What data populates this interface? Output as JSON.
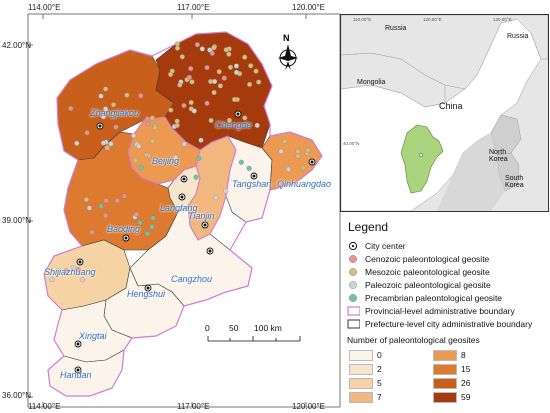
{
  "coords": {
    "top": [
      "114.00°E",
      "117.00°E",
      "120.00°E"
    ],
    "bottom": [
      "114.00°E",
      "117.00°E",
      "120.00°E"
    ],
    "left": [
      "42.00°N",
      "39.00°N",
      "36.00°N"
    ]
  },
  "north_arrow": "N",
  "cities": [
    "Zhangjiakou",
    "Chengde",
    "Beijing",
    "Langfang",
    "Tianjin",
    "Tangshan",
    "Qinhuangdao",
    "Baoding",
    "Shijiazhuang",
    "Cangzhou",
    "Hengshui",
    "Xingtai",
    "Handan"
  ],
  "inset": {
    "labels": {
      "russia_w": "Russia",
      "russia_e": "Russia",
      "mongolia": "Mongolia",
      "china": "China",
      "north_korea": "North\nKorea",
      "south_korea": "South\nKorea"
    },
    "coords": [
      "110.00°E",
      "120.00°E",
      "130.00°E",
      "40.00°N"
    ]
  },
  "legend": {
    "title": "Legend",
    "items": [
      "City center",
      "Cenozoic paleontological geosite",
      "Mesozoic paleontological geosite",
      "Paleozoic paleontological geosite",
      "Precambrian paleontological geosite",
      "Provincial-level administrative boundary",
      "Prefecture-level city administrative boundary"
    ],
    "count_title": "Number of paleontological geosites",
    "counts_left": [
      "0",
      "2",
      "5",
      "7"
    ],
    "counts_right": [
      "8",
      "15",
      "26",
      "59"
    ],
    "colors_left": [
      "#fcf4ea",
      "#f8e6cc",
      "#f6d3a4",
      "#f2b77e"
    ],
    "colors_right": [
      "#ec9a52",
      "#dd7a30",
      "#c8601c",
      "#a53b0c"
    ],
    "site_colors": {
      "cenozoic": "#e79296",
      "mesozoic": "#d6bc7e",
      "paleozoic": "#d2d2d6",
      "precambrian": "#72c2a8"
    }
  },
  "scale_bar": {
    "labels": [
      "0",
      "50",
      "100 km"
    ]
  },
  "region_counts": {
    "Zhangjiakou": "26",
    "Chengde": "59",
    "Beijing": "8",
    "Langfang": "2",
    "Tianjin": "7",
    "Tangshan": "0",
    "Qinhuangdao": "8",
    "Baoding": "15",
    "Shijiazhuang": "5",
    "Cangzhou": "0",
    "Hengshui": "0",
    "Xingtai": "0",
    "Handan": "0"
  }
}
